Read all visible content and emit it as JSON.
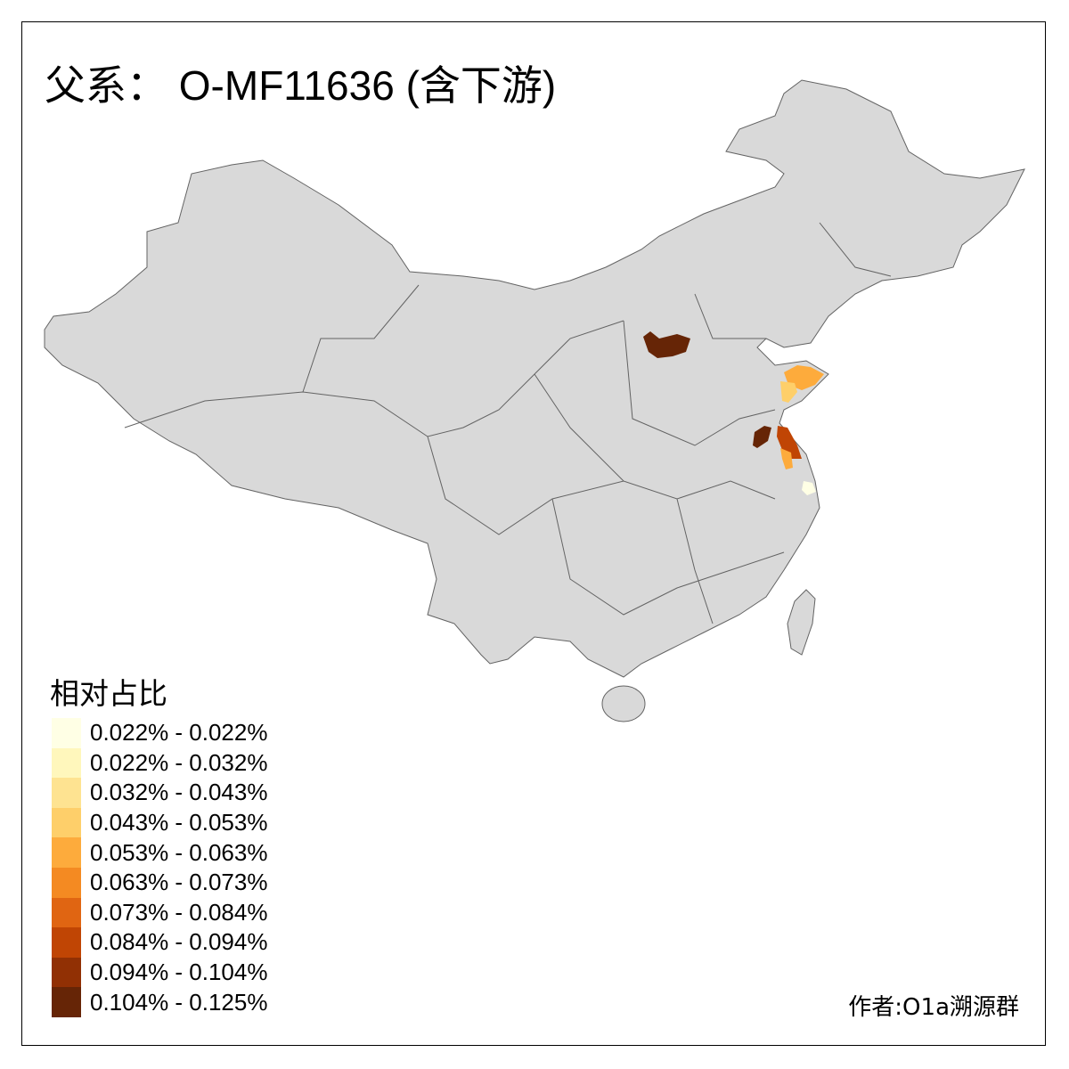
{
  "title": "父系： O-MF11636 (含下游)",
  "legend": {
    "title": "相对占比",
    "items": [
      {
        "label": "0.022% - 0.022%",
        "color": "#FFFFE5"
      },
      {
        "label": "0.022% - 0.032%",
        "color": "#FFF7BC"
      },
      {
        "label": "0.032% - 0.043%",
        "color": "#FEE391"
      },
      {
        "label": "0.043% - 0.053%",
        "color": "#FECF6A"
      },
      {
        "label": "0.053% - 0.063%",
        "color": "#FDAB3C"
      },
      {
        "label": "0.063% - 0.073%",
        "color": "#F48A22"
      },
      {
        "label": "0.073% - 0.084%",
        "color": "#E06512"
      },
      {
        "label": "0.084% - 0.094%",
        "color": "#C04504"
      },
      {
        "label": "0.094% - 0.104%",
        "color": "#913004"
      },
      {
        "label": "0.104% - 0.125%",
        "color": "#662506"
      }
    ]
  },
  "map": {
    "base_color": "#D9D9D9",
    "border_color": "#636363"
  },
  "author": "作者:O1a溯源群"
}
